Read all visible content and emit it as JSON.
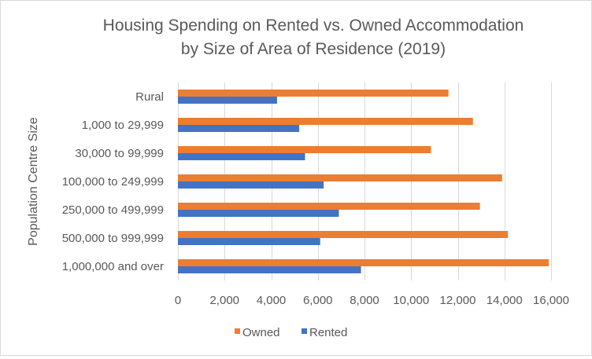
{
  "chart_data": {
    "type": "bar",
    "orientation": "horizontal",
    "title": [
      "Housing Spending on Rented vs. Owned Accommodation",
      "by Size of Area of Residence (2019)"
    ],
    "ylabel": "Population Centre Size",
    "xlabel": "",
    "categories": [
      "Rural",
      "1,000 to 29,999",
      "30,000 to 99,999",
      "100,000 to 249,999",
      "250,000 to 499,999",
      "500,000 to 999,999",
      "1,000,000 and over"
    ],
    "series": [
      {
        "name": "Owned",
        "color": "#ed7d31",
        "values": [
          11600,
          12650,
          10850,
          13900,
          12950,
          14150,
          15900
        ]
      },
      {
        "name": "Rented",
        "color": "#4472c4",
        "values": [
          4250,
          5200,
          5450,
          6250,
          6900,
          6100,
          7850
        ]
      }
    ],
    "xlim": [
      0,
      16000
    ],
    "xticks": [
      0,
      2000,
      4000,
      6000,
      8000,
      10000,
      12000,
      14000,
      16000
    ],
    "xtick_labels": [
      "0",
      "2,000",
      "4,000",
      "6,000",
      "8,000",
      "10,000",
      "12,000",
      "14,000",
      "16,000"
    ],
    "grid": true,
    "legend_position": "bottom"
  }
}
